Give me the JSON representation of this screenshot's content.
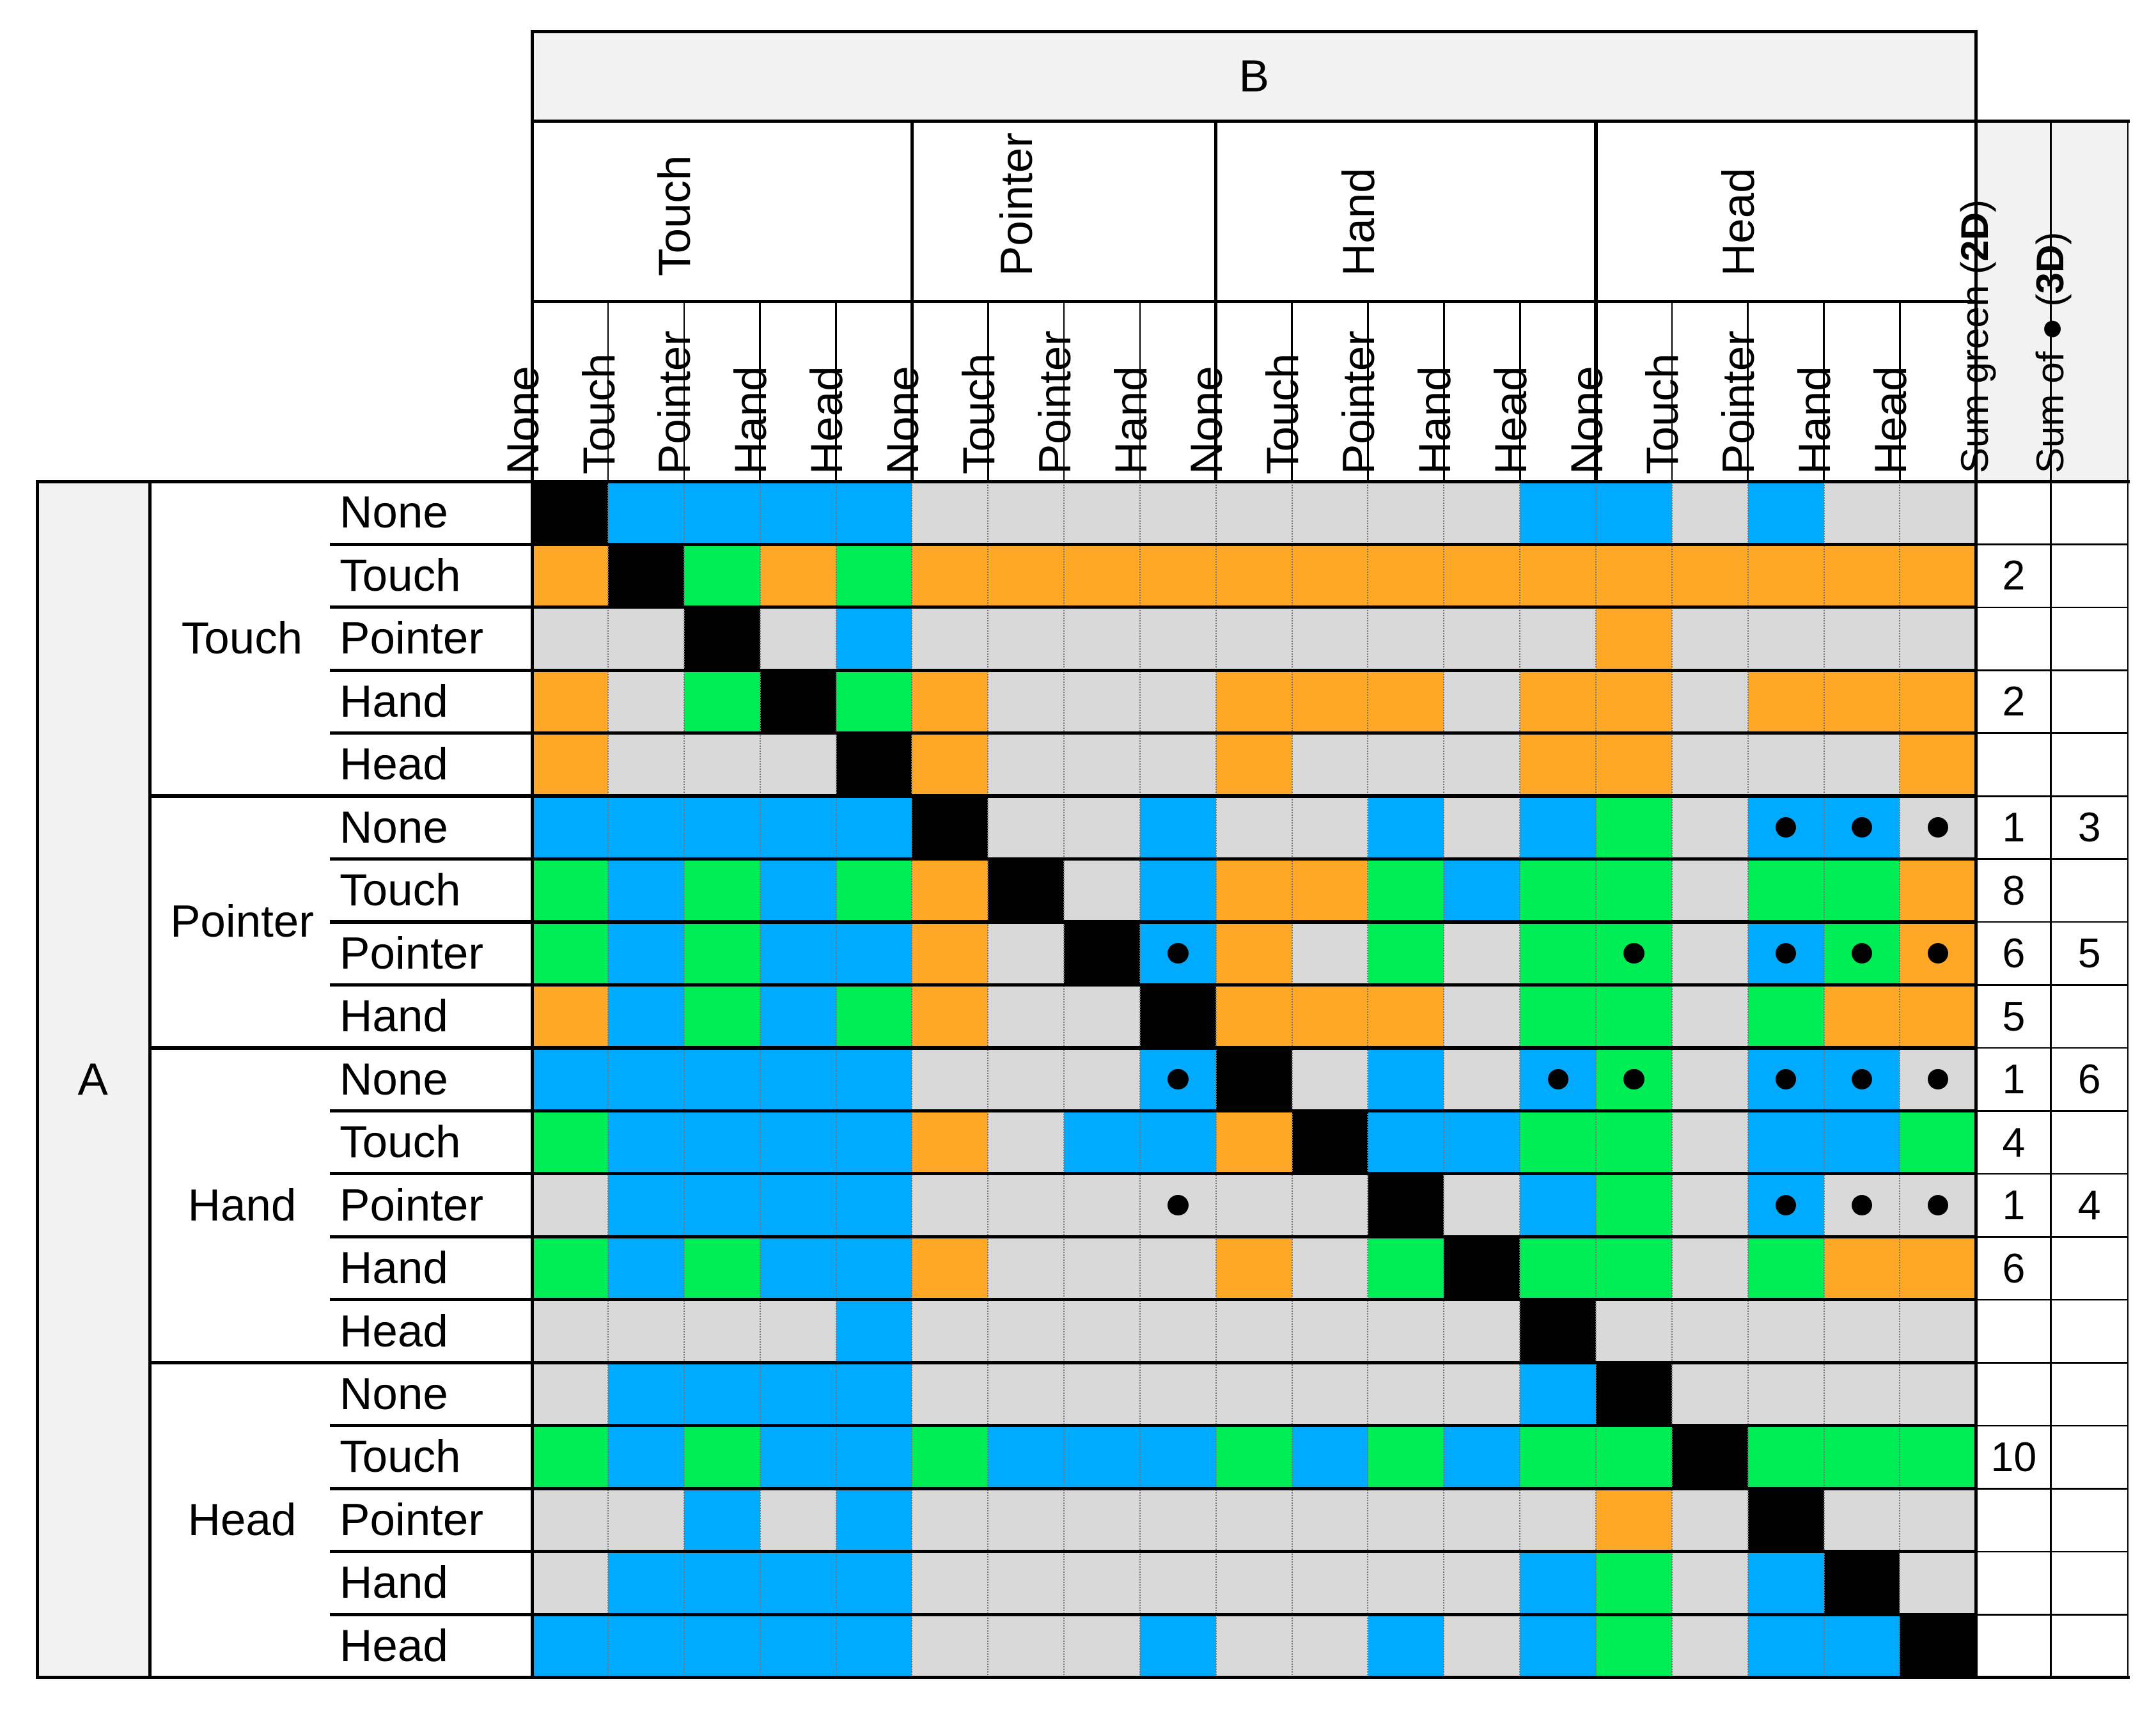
{
  "labels": {
    "a_axis": "A",
    "b_axis": "B",
    "sum_green_parts": [
      "Sum green (",
      "2D",
      ")"
    ],
    "sum_dots_parts": [
      "Sum of ● (",
      "3D",
      ")"
    ],
    "dot_symbol": "●"
  },
  "modes": [
    "None",
    "Touch",
    "Pointer",
    "Hand",
    "Head"
  ],
  "col_groups": [
    {
      "name": "Touch",
      "subs": [
        "None",
        "Touch",
        "Pointer",
        "Hand",
        "Head"
      ]
    },
    {
      "name": "Pointer",
      "subs": [
        "None",
        "Touch",
        "Pointer",
        "Hand"
      ]
    },
    {
      "name": "Hand",
      "subs": [
        "None",
        "Touch",
        "Pointer",
        "Hand",
        "Head"
      ]
    },
    {
      "name": "Head",
      "subs": [
        "None",
        "Touch",
        "Pointer",
        "Hand",
        "Head"
      ]
    }
  ],
  "row_groups": [
    {
      "name": "Touch",
      "subs": [
        "None",
        "Touch",
        "Pointer",
        "Hand",
        "Head"
      ]
    },
    {
      "name": "Pointer",
      "subs": [
        "None",
        "Touch",
        "Pointer",
        "Hand"
      ]
    },
    {
      "name": "Hand",
      "subs": [
        "None",
        "Touch",
        "Pointer",
        "Hand",
        "Head"
      ]
    },
    {
      "name": "Head",
      "subs": [
        "None",
        "Touch",
        "Pointer",
        "Hand",
        "Head"
      ]
    }
  ],
  "legend_colors": {
    "G": "#d9d9d9",
    "B": "#00aaff",
    "O": "#ffa726",
    "N": "#00ee55",
    "K": "#000000"
  },
  "cells": [
    "KBBBBGGGGGGGGBBGBGG",
    "OKNONOOOOOOOOOOOOOO",
    "GGKGBGGGGGGGGGOGGGG",
    "OGNKNOGGGOOOGOOGOOO",
    "OGGGKOGGGOGGGOOGGGO",
    "BBBBBKGGBGGBGBNGBBG",
    "NBNBNOKGBOONBNNGNNO",
    "NBNBBOGKBOGNGNNGBNO",
    "OBNBNOGGKOOOGNNGNOO",
    "BBBBBGGGBKGBGBNGBBG",
    "NBBBBOGBBOKBBNNGBBN",
    "GBBBBGGGGGGKGBNGBGG",
    "NBNBBOGGGOGNKNNGNOO",
    "GGGGBGGGGGGGGKGGGGG",
    "GBBBBGGGGGGGGBKGGGG",
    "NBNBBNBBBNBNBNNKNNN",
    "GGBGBGGGGGGGGGOGKGG",
    "GBBBBGGGGGGGGBNGBKG",
    "BBBBBGGGBGGBGBNGBBK"
  ],
  "dots": [
    [
      5,
      16
    ],
    [
      5,
      17
    ],
    [
      5,
      18
    ],
    [
      7,
      8
    ],
    [
      7,
      14
    ],
    [
      7,
      16
    ],
    [
      7,
      17
    ],
    [
      7,
      18
    ],
    [
      9,
      8
    ],
    [
      9,
      13
    ],
    [
      9,
      14
    ],
    [
      9,
      16
    ],
    [
      9,
      17
    ],
    [
      9,
      18
    ],
    [
      11,
      8
    ],
    [
      11,
      16
    ],
    [
      11,
      17
    ],
    [
      11,
      18
    ]
  ],
  "sum_green": [
    "",
    "2",
    "",
    "2",
    "",
    "1",
    "8",
    "6",
    "5",
    "1",
    "4",
    "1",
    "6",
    "",
    "",
    "10",
    "",
    "",
    ""
  ],
  "sum_dots": [
    "",
    "",
    "",
    "",
    "",
    "3",
    "",
    "5",
    "",
    "6",
    "",
    "4",
    "",
    "",
    "",
    "",
    "",
    "",
    ""
  ]
}
